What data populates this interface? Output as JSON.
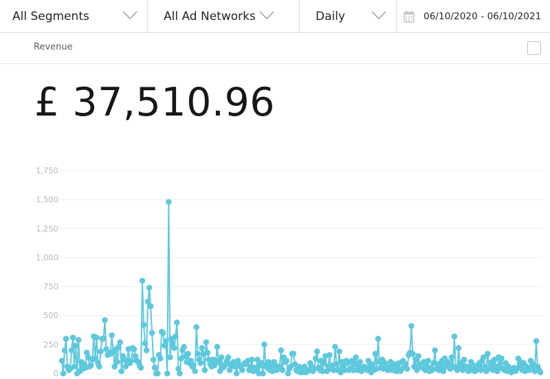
{
  "filters": {
    "segment": "All Segments",
    "ad_network": "All Ad Networks",
    "granularity": "Daily",
    "date_range": "06/10/2020 - 06/10/2021"
  },
  "metric": {
    "name": "Revenue",
    "total": "£ 37,510.96"
  },
  "colors": {
    "series": "#5ec8dd",
    "grid": "#ececee",
    "tick": "#b5b7bd"
  },
  "chart_data": {
    "type": "line",
    "title": "",
    "xlabel": "",
    "ylabel": "",
    "ylim": [
      0,
      1750
    ],
    "yticks": [
      "0",
      "250",
      "500",
      "750",
      "1,000",
      "1,250",
      "1,500",
      "1,750"
    ],
    "grid": true,
    "series": [
      {
        "values": [
          110,
          0,
          200,
          300,
          60,
          30,
          40,
          200,
          310,
          60,
          240,
          0,
          290,
          20,
          100,
          40,
          80,
          50,
          180,
          140,
          60,
          70,
          120,
          320,
          130,
          310,
          90,
          60,
          190,
          300,
          300,
          460,
          210,
          160,
          180,
          170,
          330,
          190,
          60,
          210,
          100,
          230,
          270,
          20,
          150,
          120,
          60,
          110,
          210,
          90,
          110,
          220,
          210,
          150,
          110,
          100,
          70,
          50,
          800,
          420,
          260,
          200,
          620,
          740,
          580,
          350,
          120,
          50,
          0,
          0,
          160,
          130,
          360,
          350,
          240,
          280,
          0,
          1480,
          140,
          300,
          260,
          220,
          320,
          440,
          40,
          0,
          130,
          200,
          230,
          150,
          100,
          170,
          90,
          110,
          60,
          70,
          20,
          400,
          170,
          120,
          90,
          220,
          170,
          30,
          270,
          180,
          120,
          80,
          60,
          120,
          70,
          110,
          230,
          100,
          20,
          140,
          50,
          60,
          80,
          110,
          140,
          30,
          60,
          90,
          100,
          60,
          0,
          110,
          70,
          60,
          30,
          80,
          90,
          80,
          110,
          30,
          60,
          120,
          20,
          50,
          30,
          120,
          0,
          70,
          90,
          0,
          250,
          70,
          50,
          100,
          30,
          60,
          20,
          100,
          70,
          30,
          40,
          60,
          200,
          30,
          140,
          100,
          110,
          0,
          40,
          60,
          170,
          170,
          80,
          30,
          20,
          60,
          10,
          10,
          30,
          60,
          10,
          20,
          30,
          90,
          60,
          20,
          40,
          130,
          190,
          50,
          30,
          110,
          20,
          90,
          150,
          20,
          60,
          160,
          40,
          70,
          30,
          230,
          80,
          30,
          190,
          10,
          100,
          60,
          30,
          110,
          90,
          30,
          40,
          110,
          30,
          80,
          140,
          30,
          60,
          100,
          20,
          40,
          60,
          50,
          30,
          110,
          60,
          10,
          80,
          30,
          170,
          40,
          300,
          100,
          50,
          120,
          40,
          90,
          60,
          30,
          50,
          100,
          30,
          60,
          80,
          20,
          50,
          90,
          20,
          40,
          110,
          60,
          80,
          40,
          160,
          180,
          410,
          170,
          60,
          120,
          30,
          150,
          80,
          60,
          50,
          100,
          30,
          60,
          110,
          20,
          50,
          30,
          90,
          200,
          40,
          80,
          30,
          60,
          110,
          20,
          130,
          60,
          100,
          90,
          40,
          140,
          60,
          320,
          50,
          30,
          220,
          90,
          60,
          30,
          120,
          40,
          60,
          20,
          50,
          100,
          30,
          70,
          20,
          60,
          40,
          90,
          30,
          110,
          140,
          60,
          20,
          170,
          40,
          60,
          100,
          30,
          120,
          60,
          20,
          140,
          60,
          130,
          40,
          30,
          90,
          20,
          60,
          40,
          10,
          30,
          50,
          20,
          40,
          130,
          60,
          100,
          30,
          90,
          20,
          60,
          40,
          30,
          110,
          60,
          80,
          20,
          280,
          60,
          30,
          10
        ]
      }
    ]
  }
}
